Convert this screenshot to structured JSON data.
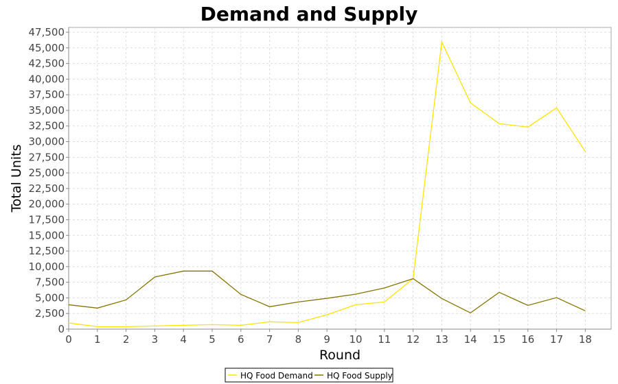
{
  "chart_data": {
    "type": "line",
    "title": "Demand and Supply",
    "xlabel": "Round",
    "ylabel": "Total Units",
    "x": [
      0,
      1,
      2,
      3,
      4,
      5,
      6,
      7,
      8,
      9,
      10,
      11,
      12,
      13,
      14,
      15,
      16,
      17,
      18
    ],
    "xlim": [
      0,
      18.9
    ],
    "ylim": [
      0,
      48270
    ],
    "yticks": [
      0,
      2500,
      5000,
      7500,
      10000,
      12500,
      15000,
      17500,
      20000,
      22500,
      25000,
      27500,
      30000,
      32500,
      35000,
      37500,
      40000,
      42500,
      45000,
      47500
    ],
    "ytick_labels": [
      "0",
      "2,500",
      "5,000",
      "7,500",
      "10,000",
      "12,500",
      "15,000",
      "17,500",
      "20,000",
      "22,500",
      "25,000",
      "27,500",
      "30,000",
      "32,500",
      "35,000",
      "37,500",
      "40,000",
      "42,500",
      "45,000",
      "47,500"
    ],
    "xtick_labels": [
      "0",
      "1",
      "2",
      "3",
      "4",
      "5",
      "6",
      "7",
      "8",
      "9",
      "10",
      "11",
      "12",
      "13",
      "14",
      "15",
      "16",
      "17",
      "18"
    ],
    "grid": true,
    "legend_position": "bottom",
    "series": [
      {
        "name": "HQ Food Demand",
        "color": "#FFE400",
        "values": [
          990,
          400,
          400,
          510,
          620,
          730,
          620,
          1170,
          1060,
          2300,
          3910,
          4350,
          8080,
          45930,
          36200,
          32880,
          32330,
          35400,
          28410
        ]
      },
      {
        "name": "HQ Food Supply",
        "color": "#857300",
        "values": [
          3900,
          3370,
          4680,
          8340,
          9290,
          9290,
          5560,
          3590,
          4350,
          4930,
          5590,
          6580,
          8080,
          4900,
          2600,
          5890,
          3800,
          5040,
          2930
        ]
      }
    ]
  }
}
